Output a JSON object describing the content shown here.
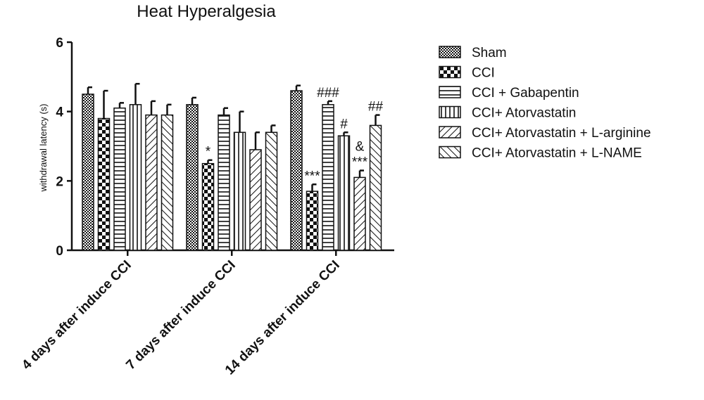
{
  "chart_data": {
    "type": "bar",
    "title": "Heat Hyperalgesia",
    "xlabel": "",
    "ylabel": "withdrawal latency (s)",
    "ylim": [
      0,
      6
    ],
    "yticks": [
      "0",
      "2",
      "4",
      "6"
    ],
    "grid": false,
    "legend_position": "right",
    "categories": [
      "4 days after induce CCI",
      "7 days after induce CCI",
      "14 days after induce CCI"
    ],
    "series": [
      {
        "name": "Sham",
        "values": [
          4.5,
          4.2,
          4.6
        ],
        "errors": [
          0.2,
          0.2,
          0.15
        ],
        "pattern": "crosshatch"
      },
      {
        "name": "CCI",
        "values": [
          3.8,
          2.5,
          1.7
        ],
        "errors": [
          0.8,
          0.1,
          0.2
        ],
        "pattern": "checker"
      },
      {
        "name": "CCI + Gabapentin",
        "values": [
          4.1,
          3.9,
          4.2
        ],
        "errors": [
          0.15,
          0.2,
          0.1
        ],
        "pattern": "hlines"
      },
      {
        "name": "CCI+ Atorvastatin",
        "values": [
          4.2,
          3.4,
          3.3
        ],
        "errors": [
          0.6,
          0.6,
          0.1
        ],
        "pattern": "vlines"
      },
      {
        "name": "CCI+ Atorvastatin + L-arginine",
        "values": [
          3.9,
          2.9,
          2.1
        ],
        "errors": [
          0.4,
          0.5,
          0.2
        ],
        "pattern": "diag-up"
      },
      {
        "name": "CCI+ Atorvastatin + L-NAME",
        "values": [
          3.9,
          3.4,
          3.6
        ],
        "errors": [
          0.3,
          0.2,
          0.3
        ],
        "pattern": "diag-down"
      }
    ],
    "annotations": [
      {
        "category": 1,
        "series": 1,
        "text": "*"
      },
      {
        "category": 2,
        "series": 1,
        "text": "***"
      },
      {
        "category": 2,
        "series": 2,
        "text": "###"
      },
      {
        "category": 2,
        "series": 3,
        "text": "#"
      },
      {
        "category": 2,
        "series": 4,
        "text": "&"
      },
      {
        "category": 2,
        "series": 4,
        "text": "***"
      },
      {
        "category": 2,
        "series": 5,
        "text": "##"
      }
    ],
    "bar_color": "#111111"
  }
}
